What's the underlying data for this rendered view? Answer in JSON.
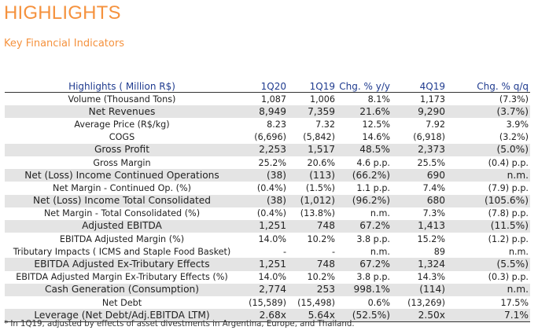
{
  "title": "HIGHLIGHTS",
  "subtitle": "Key Financial Indicators",
  "table": {
    "headers": [
      "Highlights ( Million R$)",
      "1Q20",
      "1Q19",
      "Chg. % y/y",
      "4Q19",
      "Chg. % q/q"
    ],
    "rows": [
      {
        "label": "Volume (Thousand Tons)",
        "values": [
          "1,087",
          "1,006",
          "8.1%",
          "1,173",
          "(7.3%)"
        ],
        "shaded": false,
        "bold": false
      },
      {
        "label": "Net Revenues",
        "values": [
          "8,949",
          "7,359",
          "21.6%",
          "9,290",
          "(3.7%)"
        ],
        "shaded": true,
        "bold": true
      },
      {
        "label": "Average Price (R$/kg)",
        "values": [
          "8.23",
          "7.32",
          "12.5%",
          "7.92",
          "3.9%"
        ],
        "shaded": false,
        "bold": false
      },
      {
        "label": "COGS",
        "values": [
          "(6,696)",
          "(5,842)",
          "14.6%",
          "(6,918)",
          "(3.2%)"
        ],
        "shaded": false,
        "bold": false
      },
      {
        "label": "Gross Profit",
        "values": [
          "2,253",
          "1,517",
          "48.5%",
          "2,373",
          "(5.0%)"
        ],
        "shaded": true,
        "bold": true
      },
      {
        "label": "Gross Margin",
        "values": [
          "25.2%",
          "20.6%",
          "4.6 p.p.",
          "25.5%",
          "(0.4) p.p."
        ],
        "shaded": false,
        "bold": false
      },
      {
        "label": "Net (Loss) Income Continued Operations",
        "values": [
          "(38)",
          "(113)",
          "(66.2%)",
          "690",
          "n.m."
        ],
        "shaded": true,
        "bold": true
      },
      {
        "label": "Net Margin - Continued Op. (%)",
        "values": [
          "(0.4%)",
          "(1.5%)",
          "1.1 p.p.",
          "7.4%",
          "(7.9) p.p."
        ],
        "shaded": false,
        "bold": false
      },
      {
        "label": "Net (Loss) Income Total Consolidated",
        "values": [
          "(38)",
          "(1,012)",
          "(96.2%)",
          "680",
          "(105.6%)"
        ],
        "shaded": true,
        "bold": true
      },
      {
        "label": "Net Margin - Total Consolidated (%)",
        "values": [
          "(0.4%)",
          "(13.8%)",
          "n.m.",
          "7.3%",
          "(7.8) p.p."
        ],
        "shaded": false,
        "bold": false
      },
      {
        "label": "Adjusted EBITDA",
        "values": [
          "1,251",
          "748",
          "67.2%",
          "1,413",
          "(11.5%)"
        ],
        "shaded": true,
        "bold": true
      },
      {
        "label": "EBITDA Adjusted Margin (%)",
        "values": [
          "14.0%",
          "10.2%",
          "3.8 p.p.",
          "15.2%",
          "(1.2) p.p."
        ],
        "shaded": false,
        "bold": false
      },
      {
        "label": "Tributary Impacts ( ICMS and Staple Food Basket)",
        "values": [
          "-",
          "-",
          "n.m.",
          "89",
          "n.m."
        ],
        "shaded": false,
        "bold": false
      },
      {
        "label": "EBITDA Adjusted Ex-Tributary Effects",
        "values": [
          "1,251",
          "748",
          "67.2%",
          "1,324",
          "(5.5%)"
        ],
        "shaded": true,
        "bold": true
      },
      {
        "label": "EBITDA Adjusted Margin Ex-Tributary Effects (%)",
        "values": [
          "14.0%",
          "10.2%",
          "3.8 p.p.",
          "14.3%",
          "(0.3) p.p."
        ],
        "shaded": false,
        "bold": false
      },
      {
        "label": "Cash Generation (Consumption)",
        "values": [
          "2,774",
          "253",
          "998.1%",
          "(114)",
          "n.m."
        ],
        "shaded": true,
        "bold": true
      },
      {
        "label": "Net Debt",
        "values": [
          "(15,589)",
          "(15,498)",
          "0.6%",
          "(13,269)",
          "17.5%"
        ],
        "shaded": false,
        "bold": false
      },
      {
        "label": "Leverage (Net Debt/Adj.EBITDA LTM)",
        "values": [
          "2.68x",
          "5.64x",
          "(52.5%)",
          "2.50x",
          "7.1%"
        ],
        "shaded": true,
        "bold": true
      }
    ]
  },
  "footnote": "* In 1Q19, adjusted by effects of asset divestments in Argentina, Europe, and Thailand."
}
